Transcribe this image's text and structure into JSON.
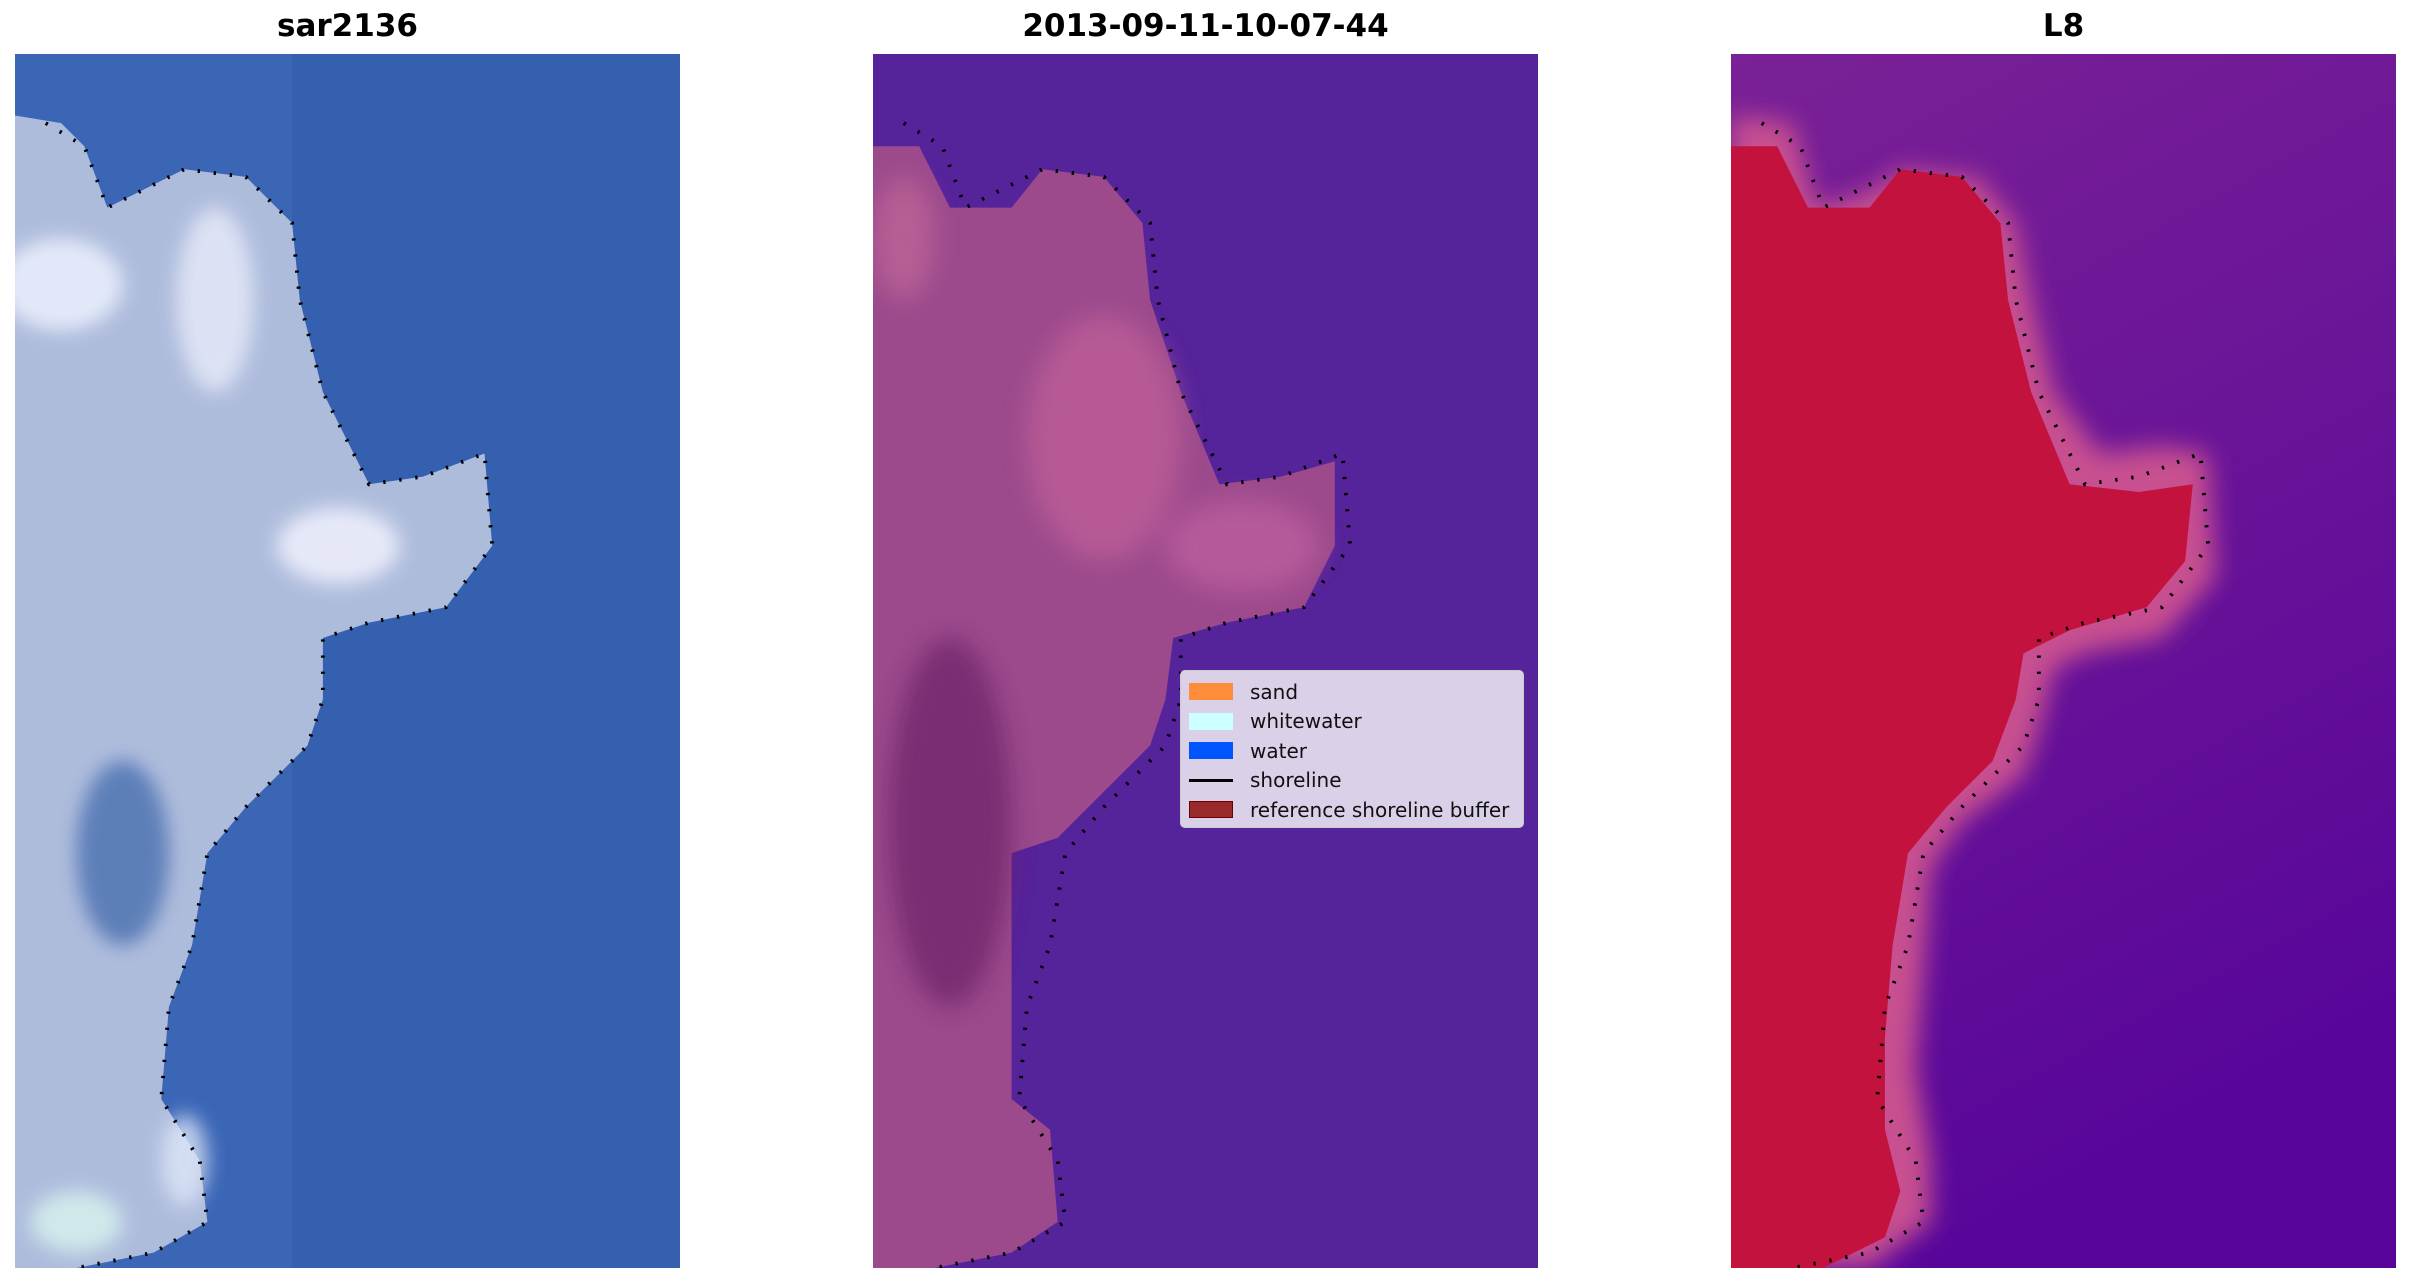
{
  "panels": [
    {
      "title": "sar2136",
      "water_color": "#3b66b6",
      "land_color": "#aebcdc"
    },
    {
      "title": "2013-09-11-10-07-44",
      "water_color": "#55239a",
      "land_color": "#9c4a8c"
    },
    {
      "title": "L8",
      "water_color": "#6c1a9a",
      "land_color": "#c4123e"
    }
  ],
  "legend": {
    "items": [
      {
        "label": "sand",
        "color": "#ff8c3a",
        "kind": "patch"
      },
      {
        "label": "whitewater",
        "color": "#ccffff",
        "kind": "patch"
      },
      {
        "label": "water",
        "color": "#0055ff",
        "kind": "patch"
      },
      {
        "label": "shoreline",
        "color": "#000000",
        "kind": "line"
      },
      {
        "label": "reference shoreline buffer",
        "color": "#992a2a",
        "kind": "patch"
      }
    ]
  }
}
